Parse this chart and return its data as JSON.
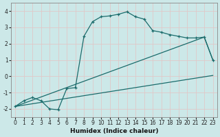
{
  "xlabel": "Humidex (Indice chaleur)",
  "bg_color": "#cce8e8",
  "grid_color": "#e8c8c8",
  "line_color": "#1a6b6b",
  "xlim": [
    -0.5,
    23.5
  ],
  "ylim": [
    -2.5,
    4.5
  ],
  "yticks": [
    -2,
    -1,
    0,
    1,
    2,
    3,
    4
  ],
  "xticks": [
    0,
    1,
    2,
    3,
    4,
    5,
    6,
    7,
    8,
    9,
    10,
    11,
    12,
    13,
    14,
    15,
    16,
    17,
    18,
    19,
    20,
    21,
    22,
    23
  ],
  "curve1_x": [
    0,
    1,
    2,
    3,
    4,
    5,
    6,
    7,
    8,
    9,
    10,
    11,
    12,
    13,
    14,
    15,
    16,
    17,
    18,
    19,
    20,
    21,
    22,
    23
  ],
  "curve1_y": [
    -1.85,
    -1.5,
    -1.3,
    -1.5,
    -2.0,
    -2.05,
    -0.75,
    -0.7,
    2.45,
    3.35,
    3.65,
    3.7,
    3.8,
    3.95,
    3.65,
    3.5,
    2.8,
    2.7,
    2.55,
    2.45,
    2.35,
    2.35,
    2.4,
    1.0
  ],
  "line1_x": [
    0,
    22,
    23
  ],
  "line1_y": [
    -1.85,
    2.4,
    1.0
  ],
  "line2_x": [
    0,
    23
  ],
  "line2_y": [
    -1.85,
    0.05
  ]
}
